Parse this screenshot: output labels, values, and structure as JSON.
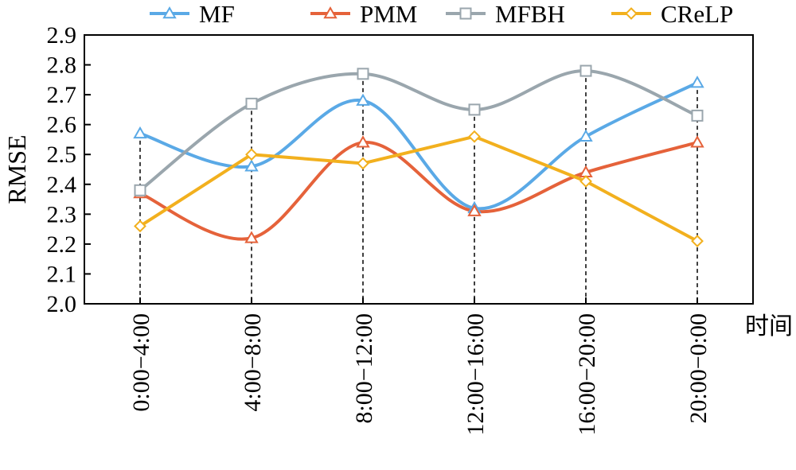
{
  "chart_data": {
    "type": "line",
    "ylabel": "RMSE",
    "xlabel": "时间",
    "categories": [
      "0:00−4:00",
      "4:00−8:00",
      "8:00−12:00",
      "12:00−16:00",
      "16:00−20:00",
      "20:00−0:00"
    ],
    "ylim": [
      2.0,
      2.9
    ],
    "yticks": [
      "2.0",
      "2.1",
      "2.2",
      "2.3",
      "2.4",
      "2.5",
      "2.6",
      "2.7",
      "2.8",
      "2.9"
    ],
    "grid": false,
    "legend_position": "top",
    "series": [
      {
        "name": "MF",
        "color": "#5aa9e6",
        "marker": "triangle",
        "values": [
          2.57,
          2.46,
          2.68,
          2.32,
          2.56,
          2.74
        ]
      },
      {
        "name": "PMM",
        "color": "#e5623a",
        "marker": "triangle",
        "values": [
          2.37,
          2.22,
          2.54,
          2.31,
          2.44,
          2.54
        ]
      },
      {
        "name": "MFBH",
        "color": "#9aa6ad",
        "marker": "square",
        "values": [
          2.38,
          2.67,
          2.77,
          2.65,
          2.78,
          2.63
        ]
      },
      {
        "name": "CReLP",
        "color": "#f2b01e",
        "marker": "diamond",
        "values": [
          2.26,
          2.5,
          2.47,
          2.56,
          2.41,
          2.21
        ]
      }
    ]
  }
}
